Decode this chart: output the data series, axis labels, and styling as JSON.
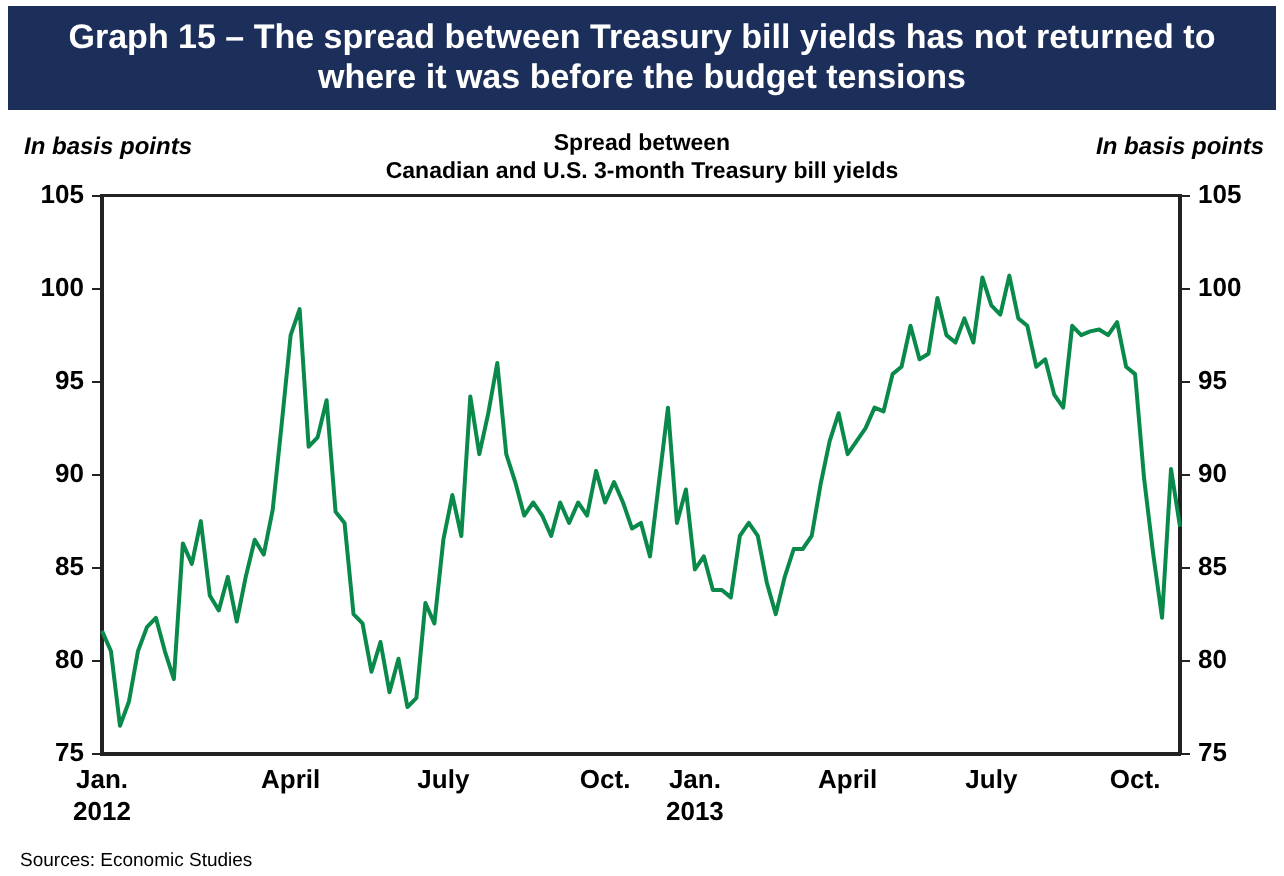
{
  "chart_data": {
    "type": "line",
    "title": "Graph 15 – The spread between Treasury bill yields has not returned to where it was before the budget tensions",
    "subtitle": "Spread between\nCanadian and U.S. 3-month Treasury bill yields",
    "ylabel": "In basis points",
    "y2label": "In basis points",
    "categories": [
      "Jan. 2012",
      null,
      null,
      null,
      null,
      null,
      null,
      null,
      null,
      null,
      null,
      null,
      null,
      null,
      null,
      null,
      null,
      null,
      null,
      null,
      null,
      "April",
      null,
      null,
      null,
      null,
      null,
      null,
      null,
      null,
      null,
      null,
      null,
      null,
      null,
      null,
      null,
      null,
      "July",
      null,
      null,
      null,
      null,
      null,
      null,
      null,
      null,
      null,
      null,
      null,
      null,
      null,
      null,
      null,
      null,
      null,
      "Oct.",
      null,
      null,
      null,
      null,
      null,
      null,
      null,
      null,
      null,
      "Jan. 2013",
      null,
      null,
      null,
      null,
      null,
      null,
      null,
      null,
      null,
      null,
      null,
      null,
      null,
      null,
      null,
      null,
      "April",
      null,
      null,
      null,
      null,
      null,
      null,
      null,
      null,
      null,
      null,
      null,
      null,
      null,
      null,
      null,
      "July",
      null,
      null,
      null,
      null,
      null,
      null,
      null,
      null,
      null,
      null,
      null,
      null,
      null,
      null,
      null,
      "Oct.",
      null,
      null,
      null,
      null,
      null
    ],
    "series": [
      {
        "color": "#0a8a4a",
        "values": [
          81.6,
          80.5,
          76.5,
          77.8,
          80.5,
          81.8,
          82.3,
          80.5,
          79.0,
          86.3,
          85.2,
          87.5,
          83.5,
          82.7,
          84.5,
          82.1,
          84.5,
          86.5,
          85.7,
          88.1,
          92.7,
          97.5,
          98.9,
          91.5,
          92.0,
          94.0,
          88.0,
          87.4,
          82.5,
          82.0,
          79.4,
          81.0,
          78.3,
          80.1,
          77.5,
          78.0,
          83.1,
          82.0,
          86.5,
          88.9,
          86.7,
          94.2,
          91.1,
          93.3,
          96.0,
          91.1,
          89.6,
          87.8,
          88.5,
          87.8,
          86.7,
          88.5,
          87.4,
          88.5,
          87.8,
          90.2,
          88.5,
          89.6,
          88.5,
          87.1,
          87.4,
          85.6,
          89.6,
          93.6,
          87.4,
          89.2,
          84.9,
          85.6,
          83.8,
          83.8,
          83.4,
          86.7,
          87.4,
          86.7,
          84.2,
          82.5,
          84.5,
          86.0,
          86.0,
          86.7,
          89.5,
          91.8,
          93.3,
          91.1,
          91.8,
          92.5,
          93.6,
          93.4,
          95.4,
          95.8,
          98.0,
          96.2,
          96.5,
          99.5,
          97.5,
          97.1,
          98.4,
          97.1,
          100.6,
          99.1,
          98.6,
          100.7,
          98.4,
          98.0,
          95.8,
          96.2,
          94.3,
          93.6,
          98.0,
          97.5,
          97.7,
          97.8,
          97.5,
          98.2,
          95.8,
          95.4,
          89.8,
          85.8,
          82.3,
          90.3,
          87.2
        ]
      }
    ],
    "ylim": [
      75,
      105
    ],
    "yticks": [
      75,
      80,
      85,
      90,
      95,
      100,
      105
    ],
    "y2lim": [
      75,
      105
    ],
    "y2ticks": [
      75,
      80,
      85,
      90,
      95,
      100,
      105
    ],
    "grid": false,
    "legend": false,
    "marker": "none",
    "line_style": "solid",
    "annotations": [
      "Sources: Economic Studies"
    ]
  }
}
